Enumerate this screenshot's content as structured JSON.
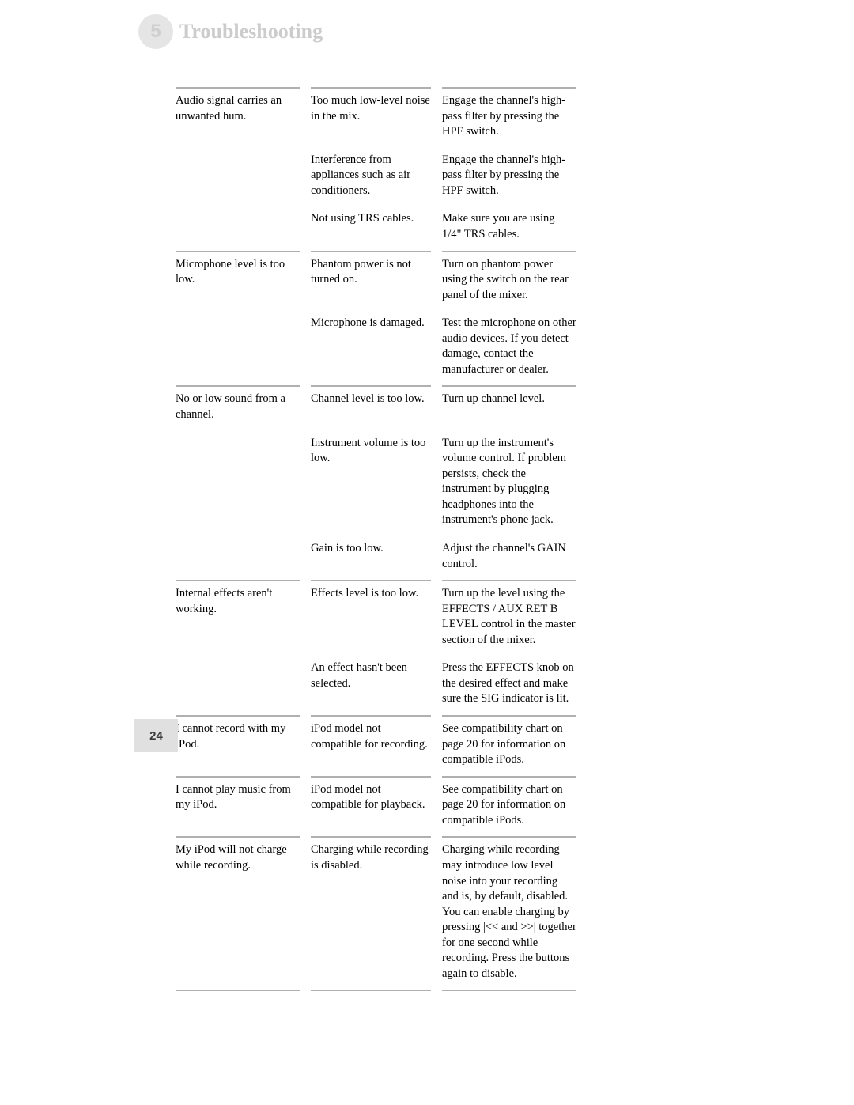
{
  "header": {
    "chapter_number": "5",
    "chapter_title": "Troubleshooting"
  },
  "footer": {
    "page_number": "24"
  },
  "colors": {
    "rule": "#b0b0b0",
    "circle_bg": "#e5e5e5",
    "circle_fg": "#cfcfcf",
    "title_fg": "#cccccc",
    "page_bg": "#e0e0e0"
  },
  "table": {
    "groups": [
      {
        "symptom": "Audio signal carries an unwanted hum.",
        "rows": [
          {
            "cause": "Too much low-level noise in the mix.",
            "solution": "Engage the channel's high-pass filter by pressing the HPF switch."
          },
          {
            "cause": "Interference from appliances such as air conditioners.",
            "solution": "Engage the channel's high-pass filter by pressing the HPF switch."
          },
          {
            "cause": "Not using TRS cables.",
            "solution": "Make sure you are using 1/4\" TRS cables."
          }
        ]
      },
      {
        "symptom": "Microphone level is too low.",
        "rows": [
          {
            "cause": "Phantom power is not turned on.",
            "solution": "Turn on phantom power using the switch on the rear panel of the mixer."
          },
          {
            "cause": "Microphone is damaged.",
            "solution": "Test the microphone on other audio devices. If you detect damage, contact the manufacturer or dealer."
          }
        ]
      },
      {
        "symptom": "No or low sound from a channel.",
        "rows": [
          {
            "cause": "Channel level is too low.",
            "solution": "Turn up channel level."
          },
          {
            "cause": "Instrument volume is too low.",
            "solution": "Turn up the instrument's volume control. If problem persists, check the instrument by plugging headphones into the instrument's phone jack."
          },
          {
            "cause": "Gain is too low.",
            "solution": "Adjust the channel's GAIN control."
          }
        ]
      },
      {
        "symptom": "Internal effects aren't working.",
        "rows": [
          {
            "cause": "Effects level is too low.",
            "solution": "Turn up the level using the EFFECTS / AUX RET B LEVEL control in the master section of the mixer."
          },
          {
            "cause": "An effect hasn't been selected.",
            "solution": "Press the EFFECTS knob on the desired effect and make sure the SIG indicator is lit."
          }
        ]
      },
      {
        "symptom": "I cannot record with my iPod.",
        "rows": [
          {
            "cause": "iPod model not compatible for recording.",
            "solution": "See compatibility chart on page 20 for information on compatible iPods."
          }
        ]
      },
      {
        "symptom": "I cannot play music from my iPod.",
        "rows": [
          {
            "cause": "iPod model not compatible for playback.",
            "solution": "See compatibility chart on page 20 for information on compatible iPods."
          }
        ]
      },
      {
        "symptom": "My iPod will not charge while recording.",
        "rows": [
          {
            "cause": "Charging while recording is disabled.",
            "solution": "Charging while recording may introduce low level noise into your recording and is, by default, disabled. You can enable charging by pressing |<< and >>| together for one second while recording.  Press the buttons again to disable."
          }
        ]
      }
    ]
  }
}
